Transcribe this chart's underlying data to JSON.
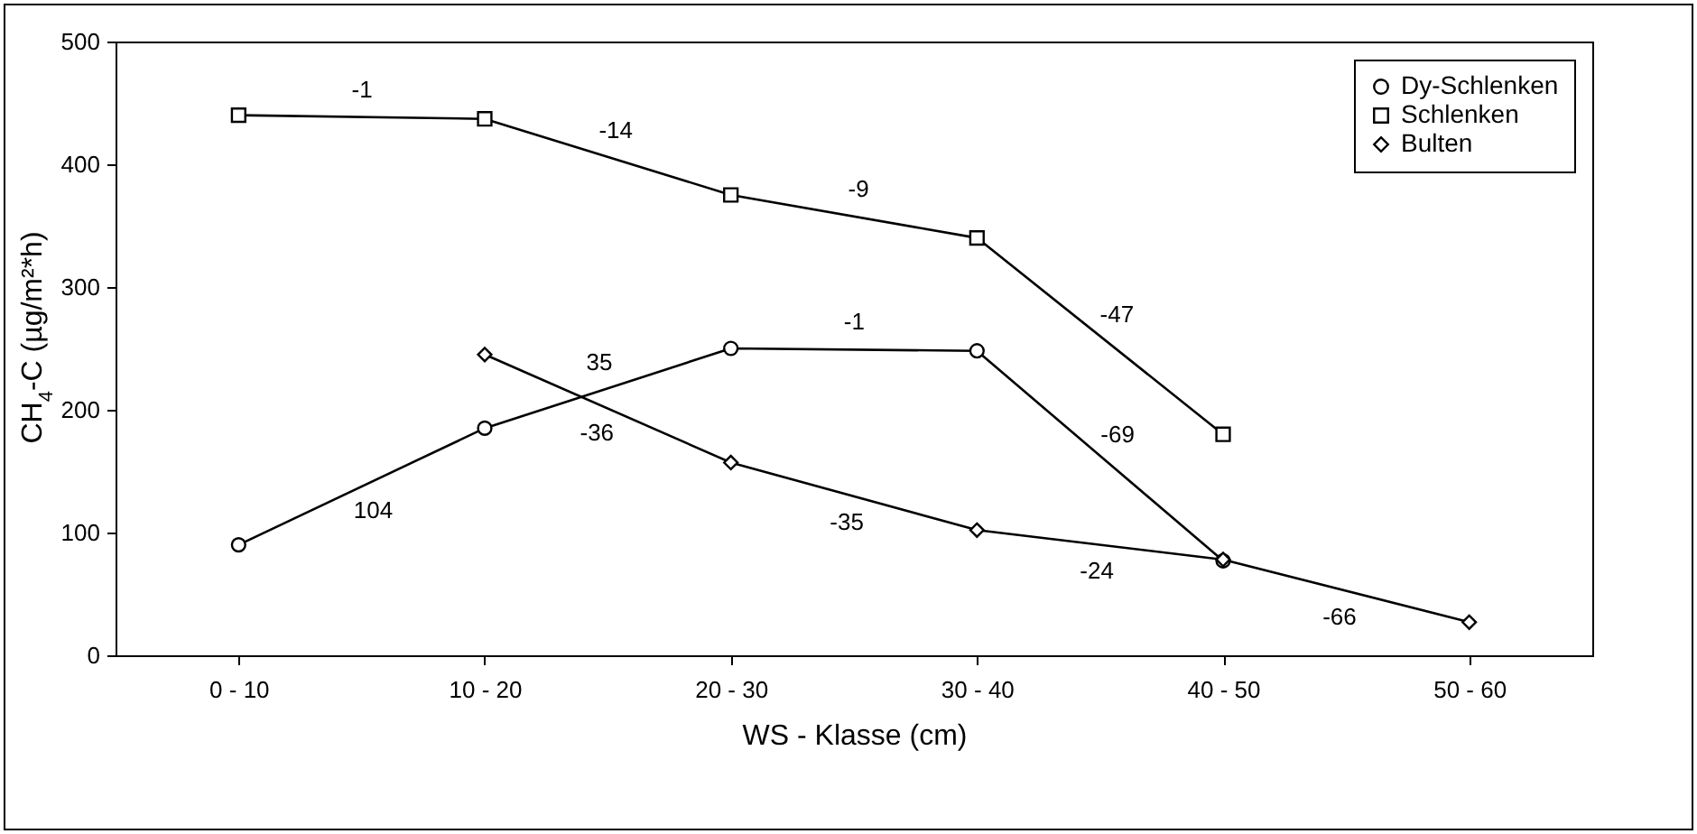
{
  "chart_data": {
    "type": "line",
    "xlabel": "WS - Klasse (cm)",
    "ylabel": "CH$_{4}$-C (µg/m²*h)",
    "categories": [
      "0 - 10",
      "10 - 20",
      "20 - 30",
      "30 - 40",
      "40 - 50",
      "50 - 60"
    ],
    "series": [
      {
        "name": "Dy-Schlenken",
        "color": "#000000",
        "marker": "circle",
        "values": [
          90,
          185,
          250,
          248,
          77,
          null
        ]
      },
      {
        "name": "Schlenken",
        "color": "#000000",
        "marker": "square",
        "values": [
          440,
          437,
          375,
          340,
          180,
          null
        ]
      },
      {
        "name": "Bulten",
        "color": "#000000",
        "marker": "diamond",
        "values": [
          null,
          245,
          157,
          102,
          78,
          27
        ]
      }
    ],
    "ylim": [
      0,
      500
    ],
    "yticks": [
      0,
      100,
      200,
      300,
      400,
      500
    ],
    "grid": false,
    "legend": "top right",
    "annotations": [
      "104",
      "35",
      "-1",
      "-69",
      "-1",
      "-14",
      "-9",
      "-47",
      "-36",
      "-35",
      "-24",
      "-66"
    ]
  }
}
